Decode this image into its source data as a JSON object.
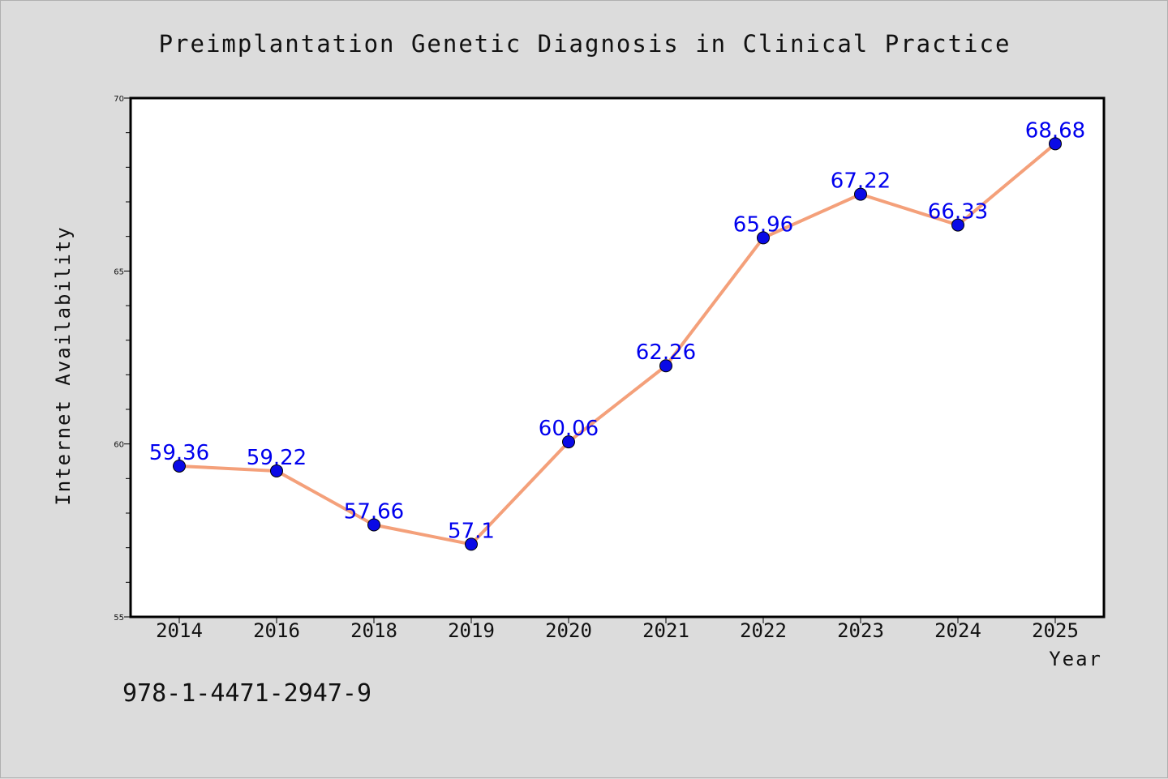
{
  "chart_data": {
    "type": "line",
    "title": "Preimplantation Genetic Diagnosis in Clinical Practice",
    "xlabel": "Year",
    "ylabel": "Internet Availability",
    "categories": [
      "2014",
      "2016",
      "2018",
      "2019",
      "2020",
      "2021",
      "2022",
      "2023",
      "2024",
      "2025"
    ],
    "series": [
      {
        "values": [
          59.36,
          59.22,
          57.66,
          57.1,
          60.06,
          62.26,
          65.96,
          67.22,
          66.33,
          68.68
        ],
        "data_labels": [
          "59.36",
          "59.22",
          "57.66",
          "57.1",
          "60.06",
          "62.26",
          "65.96",
          "67.22",
          "66.33",
          "68.68"
        ]
      }
    ],
    "ylim": [
      55,
      70
    ],
    "yticks": [
      "55",
      "60",
      "65",
      "70"
    ],
    "grid": false,
    "line_color": "#f4a07a",
    "marker_color": "#0a0ae6",
    "label_color": "#0000ee"
  },
  "footer": {
    "isbn": "978-1-4471-2947-9"
  }
}
